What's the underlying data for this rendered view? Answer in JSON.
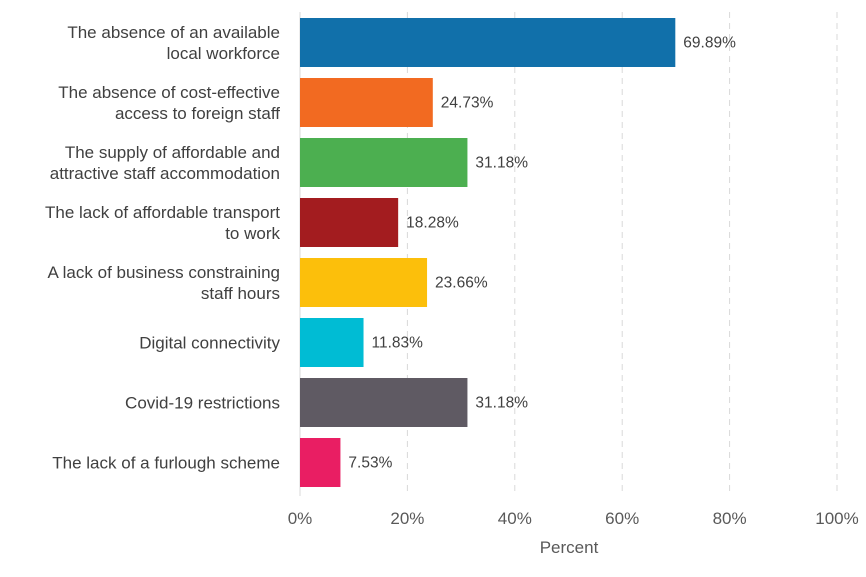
{
  "chart_data": {
    "type": "bar",
    "orientation": "horizontal",
    "categories": [
      [
        "The absence of an available",
        "local workforce"
      ],
      [
        "The absence of cost-effective",
        "access to foreign staff"
      ],
      [
        "The supply of affordable and",
        "attractive staff accommodation"
      ],
      [
        "The lack of affordable transport",
        "to work"
      ],
      [
        "A lack of business constraining",
        "staff hours"
      ],
      [
        "Digital connectivity"
      ],
      [
        "Covid-19 restrictions"
      ],
      [
        "The lack of a furlough scheme"
      ]
    ],
    "values": [
      69.89,
      24.73,
      31.18,
      18.28,
      23.66,
      11.83,
      31.18,
      7.53
    ],
    "data_labels": [
      "69.89%",
      "24.73%",
      "31.18%",
      "18.28%",
      "23.66%",
      "11.83%",
      "31.18%",
      "7.53%"
    ],
    "colors": [
      "#1170aa",
      "#f26a21",
      "#4caf50",
      "#a31c1f",
      "#fcbf0b",
      "#00bcd4",
      "#5f5a63",
      "#e91e63"
    ],
    "xlim": [
      0,
      100
    ],
    "xticks": [
      0,
      20,
      40,
      60,
      80,
      100
    ],
    "xtick_labels": [
      "0%",
      "20%",
      "40%",
      "60%",
      "80%",
      "100%"
    ],
    "xlabel": "Percent",
    "ylabel": "",
    "grid": true
  }
}
